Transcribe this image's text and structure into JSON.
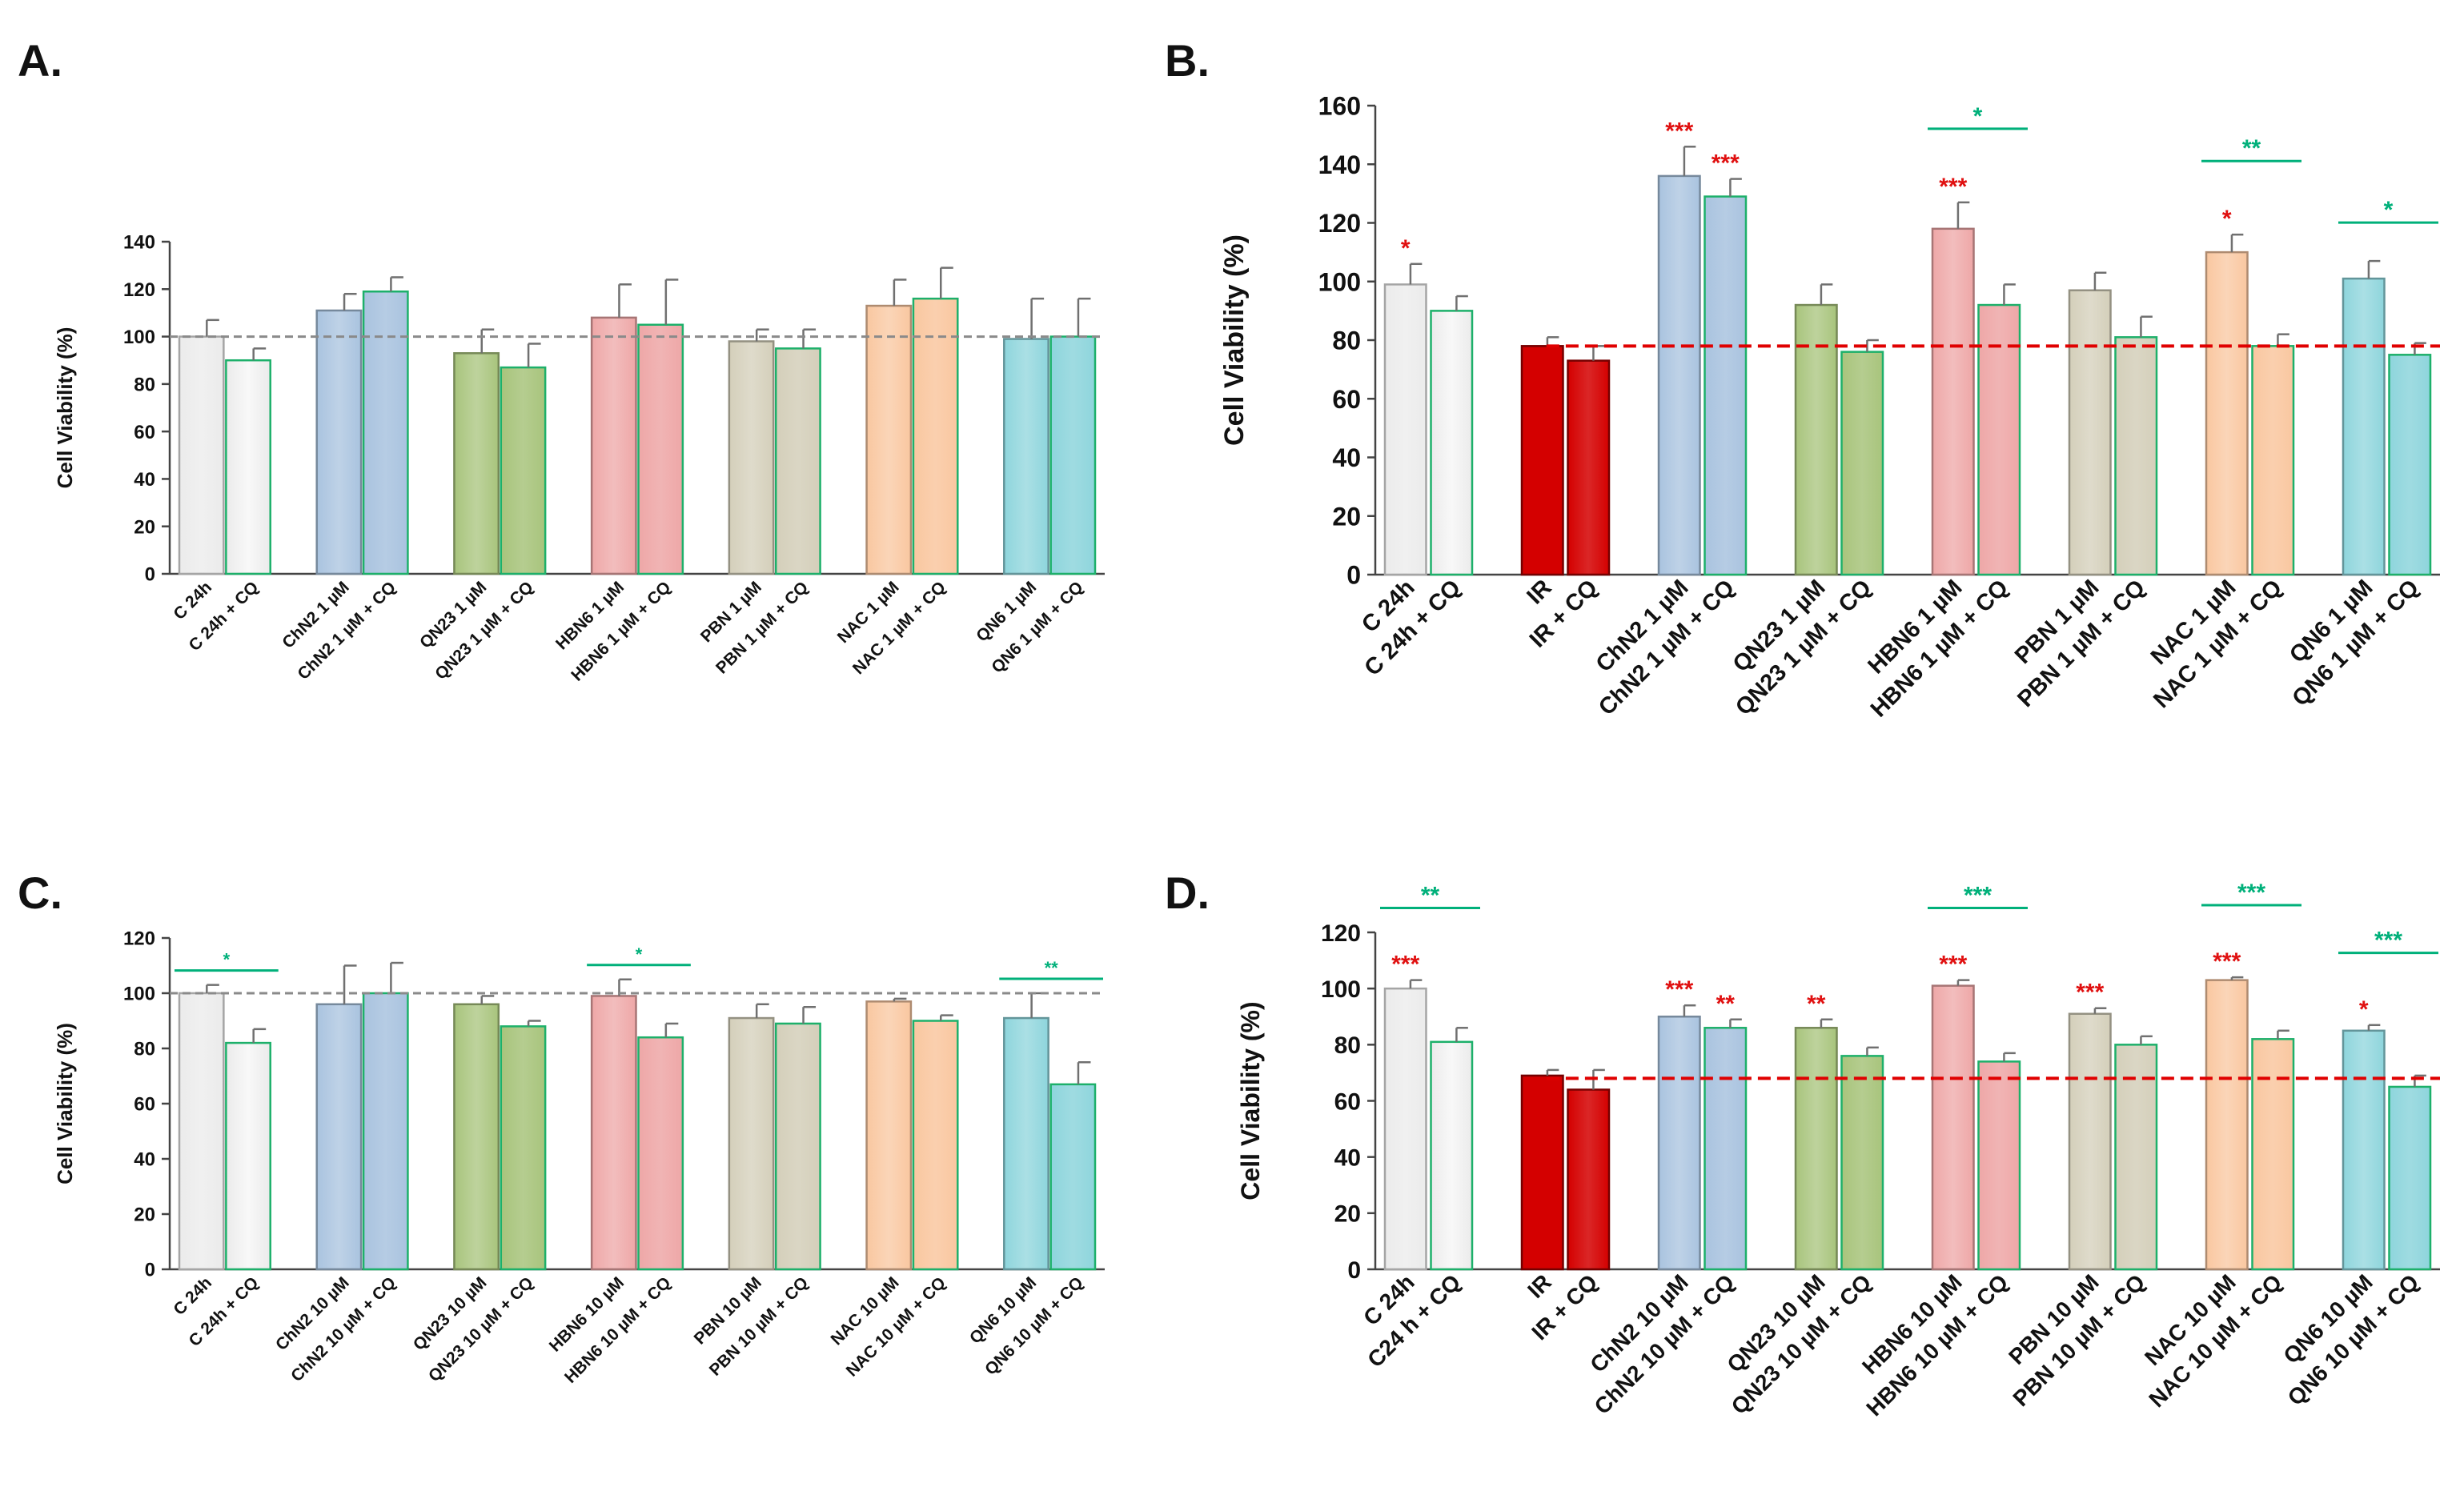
{
  "colors": {
    "axis": "#444444",
    "error": "#707070",
    "ref_dashed_gray": "#8a8a8a",
    "ref_dashed_red": "#e00000",
    "sig_red": "#e01010",
    "sig_green": "#00b07a",
    "group_fills": {
      "C": "#ebebeb",
      "IR": "#d40000",
      "ChN2": "#a9c3df",
      "QN23": "#a8c47c",
      "HBN6": "#eea7a7",
      "PBN": "#d4cfba",
      "NAC": "#f9c7a0",
      "QN6": "#8ed5dc"
    },
    "cq_border": "#1db06a"
  },
  "chart_data": [
    {
      "panel": "A.",
      "type": "bar",
      "ylabel": "Cell Viability (%)",
      "ylim": [
        0,
        140
      ],
      "yticks": [
        0,
        20,
        40,
        60,
        80,
        100,
        120,
        140
      ],
      "reference_line": {
        "value": 100,
        "style": "gray-dashed"
      },
      "categories": [
        "C 24h",
        "C 24h + CQ",
        "ChN2 1 µM",
        "ChN2 1 µM + CQ",
        "QN23 1 µM",
        "QN23 1 µM + CQ",
        "HBN6 1 µM",
        "HBN6 1 µM + CQ",
        "PBN 1 µM",
        "PBN 1 µM + CQ",
        "NAC 1 µM",
        "NAC 1 µM + CQ",
        "QN6 1 µM",
        "QN6 1 µM + CQ"
      ],
      "groups": [
        "C",
        "C",
        "ChN2",
        "ChN2",
        "QN23",
        "QN23",
        "HBN6",
        "HBN6",
        "PBN",
        "PBN",
        "NAC",
        "NAC",
        "QN6",
        "QN6"
      ],
      "values": [
        100,
        90,
        111,
        119,
        93,
        87,
        108,
        105,
        98,
        95,
        113,
        116,
        99,
        100
      ],
      "errors": [
        7,
        5,
        7,
        6,
        10,
        10,
        14,
        19,
        5,
        8,
        11,
        13,
        17,
        16
      ],
      "sig_bar": [],
      "sig_line": []
    },
    {
      "panel": "B.",
      "type": "bar",
      "ylabel": "Cell Viability (%)",
      "ylim": [
        0,
        160
      ],
      "yticks": [
        0,
        20,
        40,
        60,
        80,
        100,
        120,
        140,
        160
      ],
      "reference_line": {
        "value": 78,
        "style": "red-dashed"
      },
      "categories": [
        "C 24h",
        "C 24h + CQ",
        "IR",
        "IR + CQ",
        "ChN2 1 µM",
        "ChN2 1 µM + CQ",
        "QN23 1 µM",
        "QN23 1 µM + CQ",
        "HBN6 1 µM",
        "HBN6 1 µM + CQ",
        "PBN 1 µM",
        "PBN 1 µM + CQ",
        "NAC 1 µM",
        "NAC 1 µM + CQ",
        "QN6 1 µM",
        "QN6 1 µM + CQ"
      ],
      "groups": [
        "C",
        "C",
        "IR",
        "IR",
        "ChN2",
        "ChN2",
        "QN23",
        "QN23",
        "HBN6",
        "HBN6",
        "PBN",
        "PBN",
        "NAC",
        "NAC",
        "QN6",
        "QN6"
      ],
      "values": [
        99,
        90,
        78,
        73,
        136,
        129,
        92,
        76,
        118,
        92,
        97,
        81,
        110,
        78,
        101,
        75
      ],
      "errors": [
        7,
        5,
        3,
        5,
        10,
        6,
        7,
        4,
        9,
        7,
        6,
        7,
        6,
        4,
        6,
        4
      ],
      "sig_bar": [
        "*",
        "",
        "",
        "",
        "***",
        "***",
        "",
        "",
        "***",
        "",
        "",
        "",
        "*",
        "",
        "",
        ""
      ],
      "sig_line": [
        {
          "pair": 4,
          "label": "*"
        },
        {
          "pair": 6,
          "label": "**"
        },
        {
          "pair": 7,
          "label": "*"
        }
      ]
    },
    {
      "panel": "C.",
      "type": "bar",
      "ylabel": "Cell Viability (%)",
      "ylim": [
        0,
        120
      ],
      "yticks": [
        0,
        20,
        40,
        60,
        80,
        100,
        120
      ],
      "reference_line": {
        "value": 100,
        "style": "gray-dashed"
      },
      "categories": [
        "C 24h",
        "C 24h + CQ",
        "ChN2 10 µM",
        "ChN2 10 µM + CQ",
        "QN23 10 µM",
        "QN23 10 µM + CQ",
        "HBN6 10 µM",
        "HBN6 10 µM + CQ",
        "PBN 10 µM",
        "PBN 10 µM + CQ",
        "NAC 10 µM",
        "NAC 10 µM + CQ",
        "QN6 10 µM",
        "QN6 10 µM + CQ"
      ],
      "groups": [
        "C",
        "C",
        "ChN2",
        "ChN2",
        "QN23",
        "QN23",
        "HBN6",
        "HBN6",
        "PBN",
        "PBN",
        "NAC",
        "NAC",
        "QN6",
        "QN6"
      ],
      "values": [
        100,
        82,
        96,
        100,
        96,
        88,
        99,
        84,
        91,
        89,
        97,
        90,
        91,
        67
      ],
      "errors": [
        3,
        5,
        14,
        11,
        3,
        2,
        6,
        5,
        5,
        6,
        1,
        2,
        9,
        8
      ],
      "sig_bar": [],
      "sig_line": [
        {
          "pair": 0,
          "label": "*"
        },
        {
          "pair": 3,
          "label": "*"
        },
        {
          "pair": 6,
          "label": "**"
        }
      ]
    },
    {
      "panel": "D.",
      "type": "bar",
      "ylabel": "Cell Viability (%)",
      "ylim": [
        0,
        120
      ],
      "yticks": [
        0,
        20,
        40,
        60,
        80,
        100,
        120
      ],
      "reference_line": {
        "value": 68,
        "style": "red-dashed"
      },
      "categories": [
        "C 24h",
        "C24 h + CQ",
        "IR",
        "IR + CQ",
        "ChN2 10 µM",
        "ChN2 10 µM + CQ",
        "QN23 10 µM",
        "QN23 10 µM + CQ",
        "HBN6 10 µM",
        "HBN6 10 µM + CQ",
        "PBN 10 µM",
        "PBN 10 µM + CQ",
        "NAC 10 µM",
        "NAC 10 µM + CQ",
        "QN6 10 µM",
        "QN6 10 µM + CQ"
      ],
      "groups": [
        "C",
        "C",
        "IR",
        "IR",
        "ChN2",
        "ChN2",
        "QN23",
        "QN23",
        "HBN6",
        "HBN6",
        "PBN",
        "PBN",
        "NAC",
        "NAC",
        "QN6",
        "QN6"
      ],
      "values": [
        100,
        81,
        69,
        64,
        90,
        86,
        86,
        76,
        101,
        74,
        91,
        80,
        103,
        82,
        85,
        65
      ],
      "errors": [
        3,
        5,
        2,
        7,
        4,
        3,
        3,
        3,
        2,
        3,
        2,
        3,
        1,
        3,
        2,
        4
      ],
      "sig_bar": [
        "***",
        "",
        "",
        "",
        "***",
        "**",
        "**",
        "",
        "***",
        "",
        "***",
        "",
        "***",
        "",
        "*",
        ""
      ],
      "sig_line": [
        {
          "pair": 0,
          "label": "**"
        },
        {
          "pair": 4,
          "label": "***"
        },
        {
          "pair": 6,
          "label": "***"
        },
        {
          "pair": 7,
          "label": "***"
        }
      ]
    }
  ]
}
